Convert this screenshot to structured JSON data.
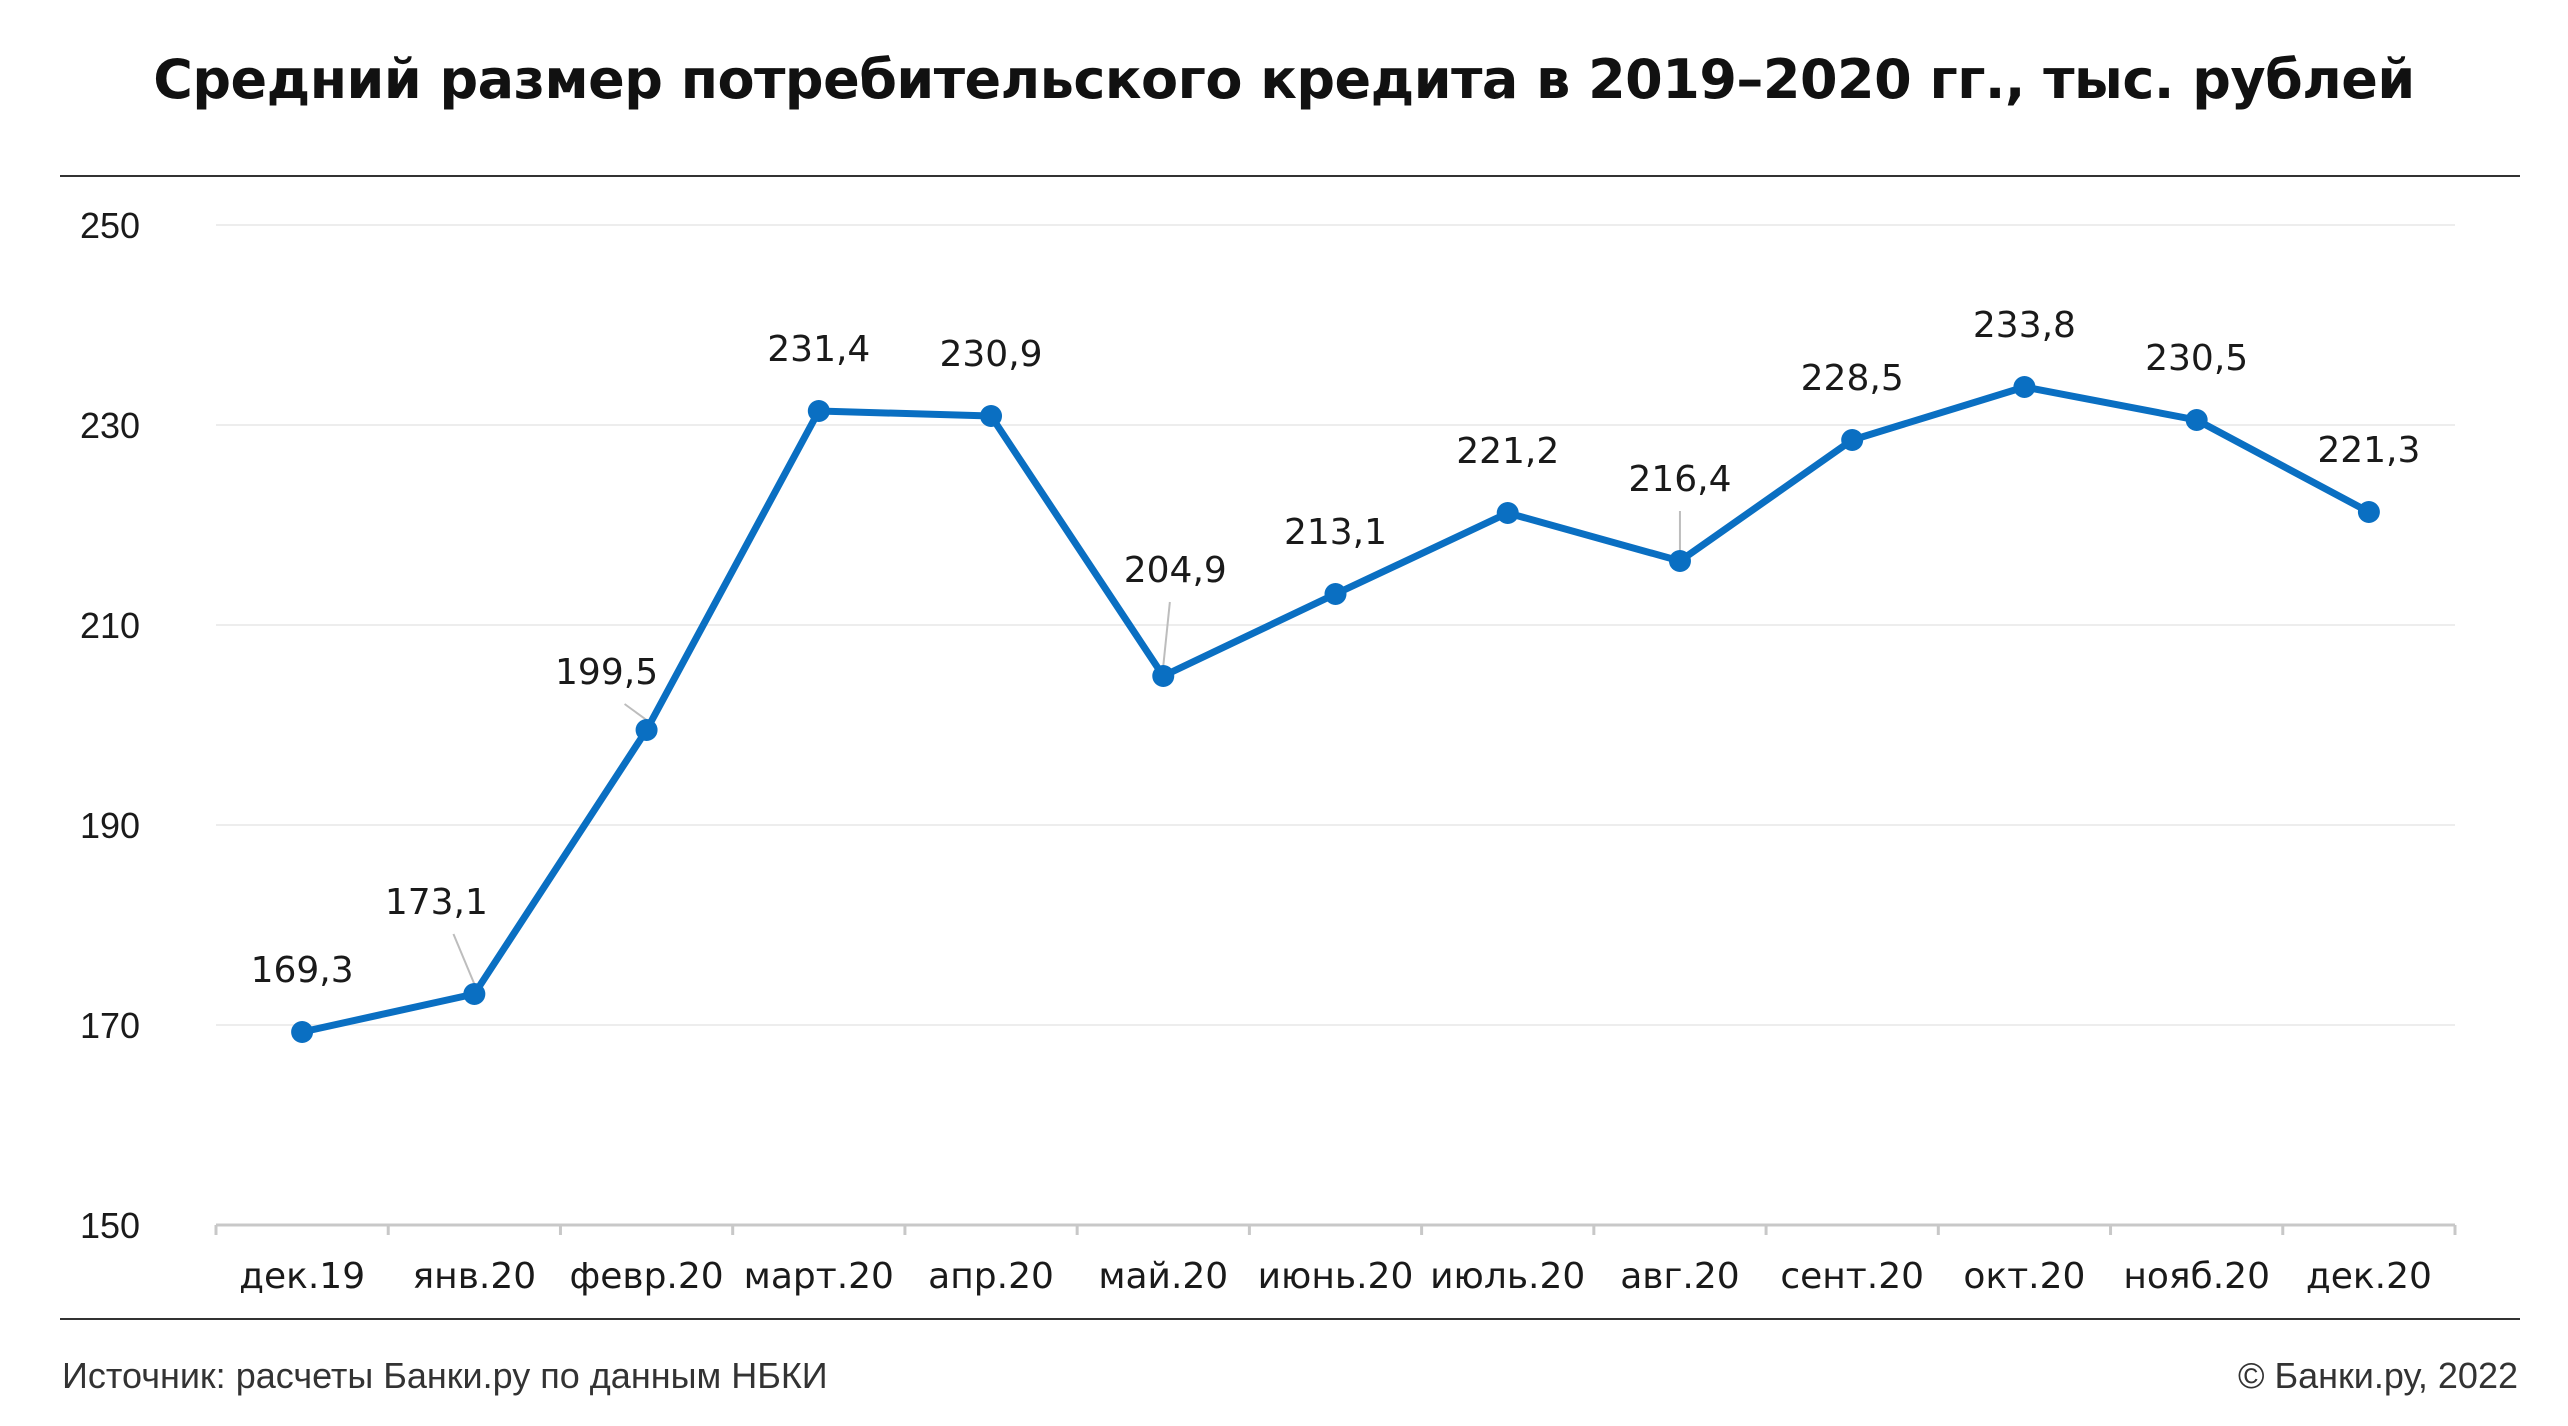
{
  "title": "Средний размер потребительского кредита в 2019–2020 гг., тыс. рублей",
  "footer": {
    "source": "Источник: расчеты Банки.ру по данным НБКИ",
    "copyright": "© Банки.ру, 2022"
  },
  "colors": {
    "line": "#0A6FC2",
    "grid": "#EDEDED",
    "axis": "#C8C8C8",
    "text": "#1a1a1a"
  },
  "chart_data": {
    "type": "line",
    "title": "Средний размер потребительского кредита в 2019–2020 гг., тыс. рублей",
    "xlabel": "",
    "ylabel": "",
    "ylim": [
      150,
      250
    ],
    "yticks": [
      150,
      170,
      190,
      210,
      230,
      250
    ],
    "grid": true,
    "categories": [
      "дек.19",
      "янв.20",
      "февр.20",
      "март.20",
      "апр.20",
      "май.20",
      "июнь.20",
      "июль.20",
      "авг.20",
      "сент.20",
      "окт.20",
      "нояб.20",
      "дек.20"
    ],
    "series": [
      {
        "values": [
          169.3,
          173.1,
          199.5,
          231.4,
          230.9,
          204.9,
          213.1,
          221.2,
          216.4,
          228.5,
          233.8,
          230.5,
          221.3
        ],
        "labels": [
          "169,3",
          "173,1",
          "199,5",
          "231,4",
          "230,9",
          "204,9",
          "213,1",
          "221,2",
          "216,4",
          "228,5",
          "233,8",
          "230,5",
          "221,3"
        ]
      }
    ]
  }
}
